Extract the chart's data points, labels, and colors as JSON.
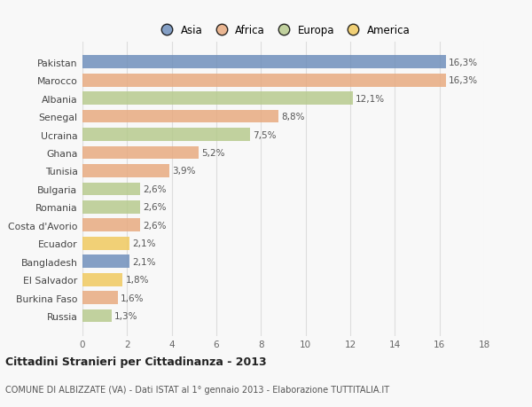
{
  "countries": [
    "Pakistan",
    "Marocco",
    "Albania",
    "Senegal",
    "Ucraina",
    "Ghana",
    "Tunisia",
    "Bulgaria",
    "Romania",
    "Costa d'Avorio",
    "Ecuador",
    "Bangladesh",
    "El Salvador",
    "Burkina Faso",
    "Russia"
  ],
  "values": [
    16.3,
    16.3,
    12.1,
    8.8,
    7.5,
    5.2,
    3.9,
    2.6,
    2.6,
    2.6,
    2.1,
    2.1,
    1.8,
    1.6,
    1.3
  ],
  "labels": [
    "16,3%",
    "16,3%",
    "12,1%",
    "8,8%",
    "7,5%",
    "5,2%",
    "3,9%",
    "2,6%",
    "2,6%",
    "2,6%",
    "2,1%",
    "2,1%",
    "1,8%",
    "1,6%",
    "1,3%"
  ],
  "continents": [
    "Asia",
    "Africa",
    "Europa",
    "Africa",
    "Europa",
    "Africa",
    "Africa",
    "Europa",
    "Europa",
    "Africa",
    "America",
    "Asia",
    "America",
    "Africa",
    "Europa"
  ],
  "colors": {
    "Asia": "#6b8cba",
    "Africa": "#e8a87c",
    "Europa": "#b5c98a",
    "America": "#f0c85a"
  },
  "xlim": [
    0,
    18
  ],
  "xticks": [
    0,
    2,
    4,
    6,
    8,
    10,
    12,
    14,
    16,
    18
  ],
  "title": "Cittadini Stranieri per Cittadinanza - 2013",
  "subtitle": "COMUNE DI ALBIZZATE (VA) - Dati ISTAT al 1° gennaio 2013 - Elaborazione TUTTITALIA.IT",
  "bg_color": "#f8f8f8",
  "grid_color": "#dddddd",
  "bar_alpha": 0.82,
  "legend_order": [
    "Asia",
    "Africa",
    "Europa",
    "America"
  ]
}
